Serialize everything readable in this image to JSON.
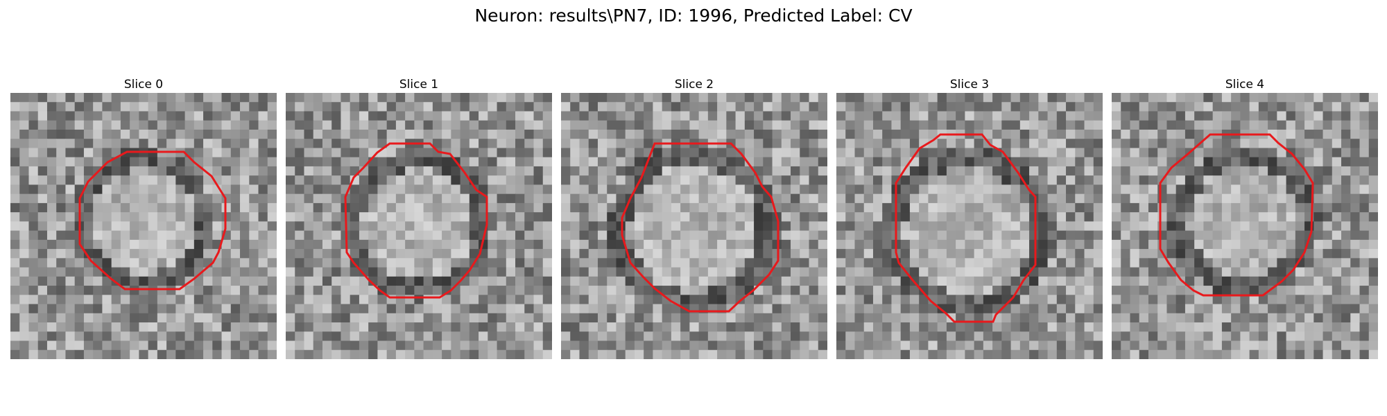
{
  "figure": {
    "title": "Neuron: results\\PN7, ID: 1996, Predicted Label: CV"
  },
  "colors": {
    "contour": "#e8191c",
    "colormap": "gray"
  },
  "slices": [
    {
      "label": "Slice 0"
    },
    {
      "label": "Slice 1"
    },
    {
      "label": "Slice 2"
    },
    {
      "label": "Slice 3"
    },
    {
      "label": "Slice 4"
    }
  ]
}
